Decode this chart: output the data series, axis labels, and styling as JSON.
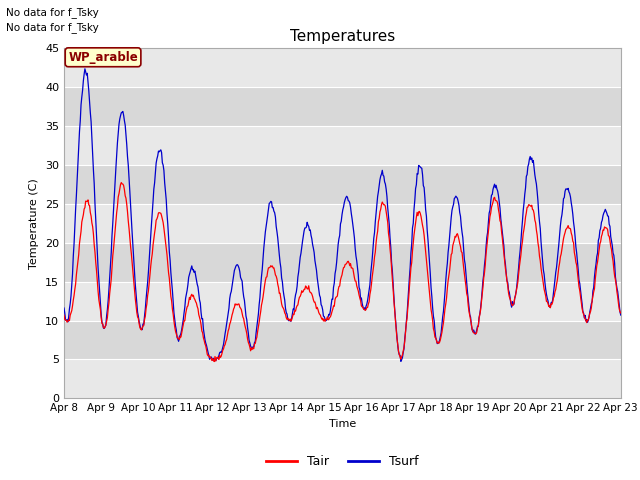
{
  "title": "Temperatures",
  "xlabel": "Time",
  "ylabel": "Temperature (C)",
  "ylim": [
    0,
    45
  ],
  "yticks": [
    0,
    5,
    10,
    15,
    20,
    25,
    30,
    35,
    40,
    45
  ],
  "xtick_labels": [
    "Apr 8",
    "Apr 9",
    "Apr 10",
    "Apr 11",
    "Apr 12",
    "Apr 13",
    "Apr 14",
    "Apr 15",
    "Apr 16",
    "Apr 17",
    "Apr 18",
    "Apr 19",
    "Apr 20",
    "Apr 21",
    "Apr 22",
    "Apr 23"
  ],
  "color_tair": "#ff0000",
  "color_tsurf": "#0000cc",
  "legend_label_tair": "Tair",
  "legend_label_tsurf": "Tsurf",
  "annotation_text": "WP_arable",
  "top_left_text1": "No data for f_Tsky",
  "top_left_text2": "No data for f_Tsky",
  "band_colors": [
    "#e0e0e0",
    "#d0d0d0"
  ],
  "plot_bg_color": "#d8d8d8",
  "fig_bg_color": "#ffffff",
  "grid_color": "#ffffff",
  "annotation_facecolor": "#ffffcc",
  "annotation_edgecolor": "#8b0000",
  "annotation_textcolor": "#8b0000"
}
